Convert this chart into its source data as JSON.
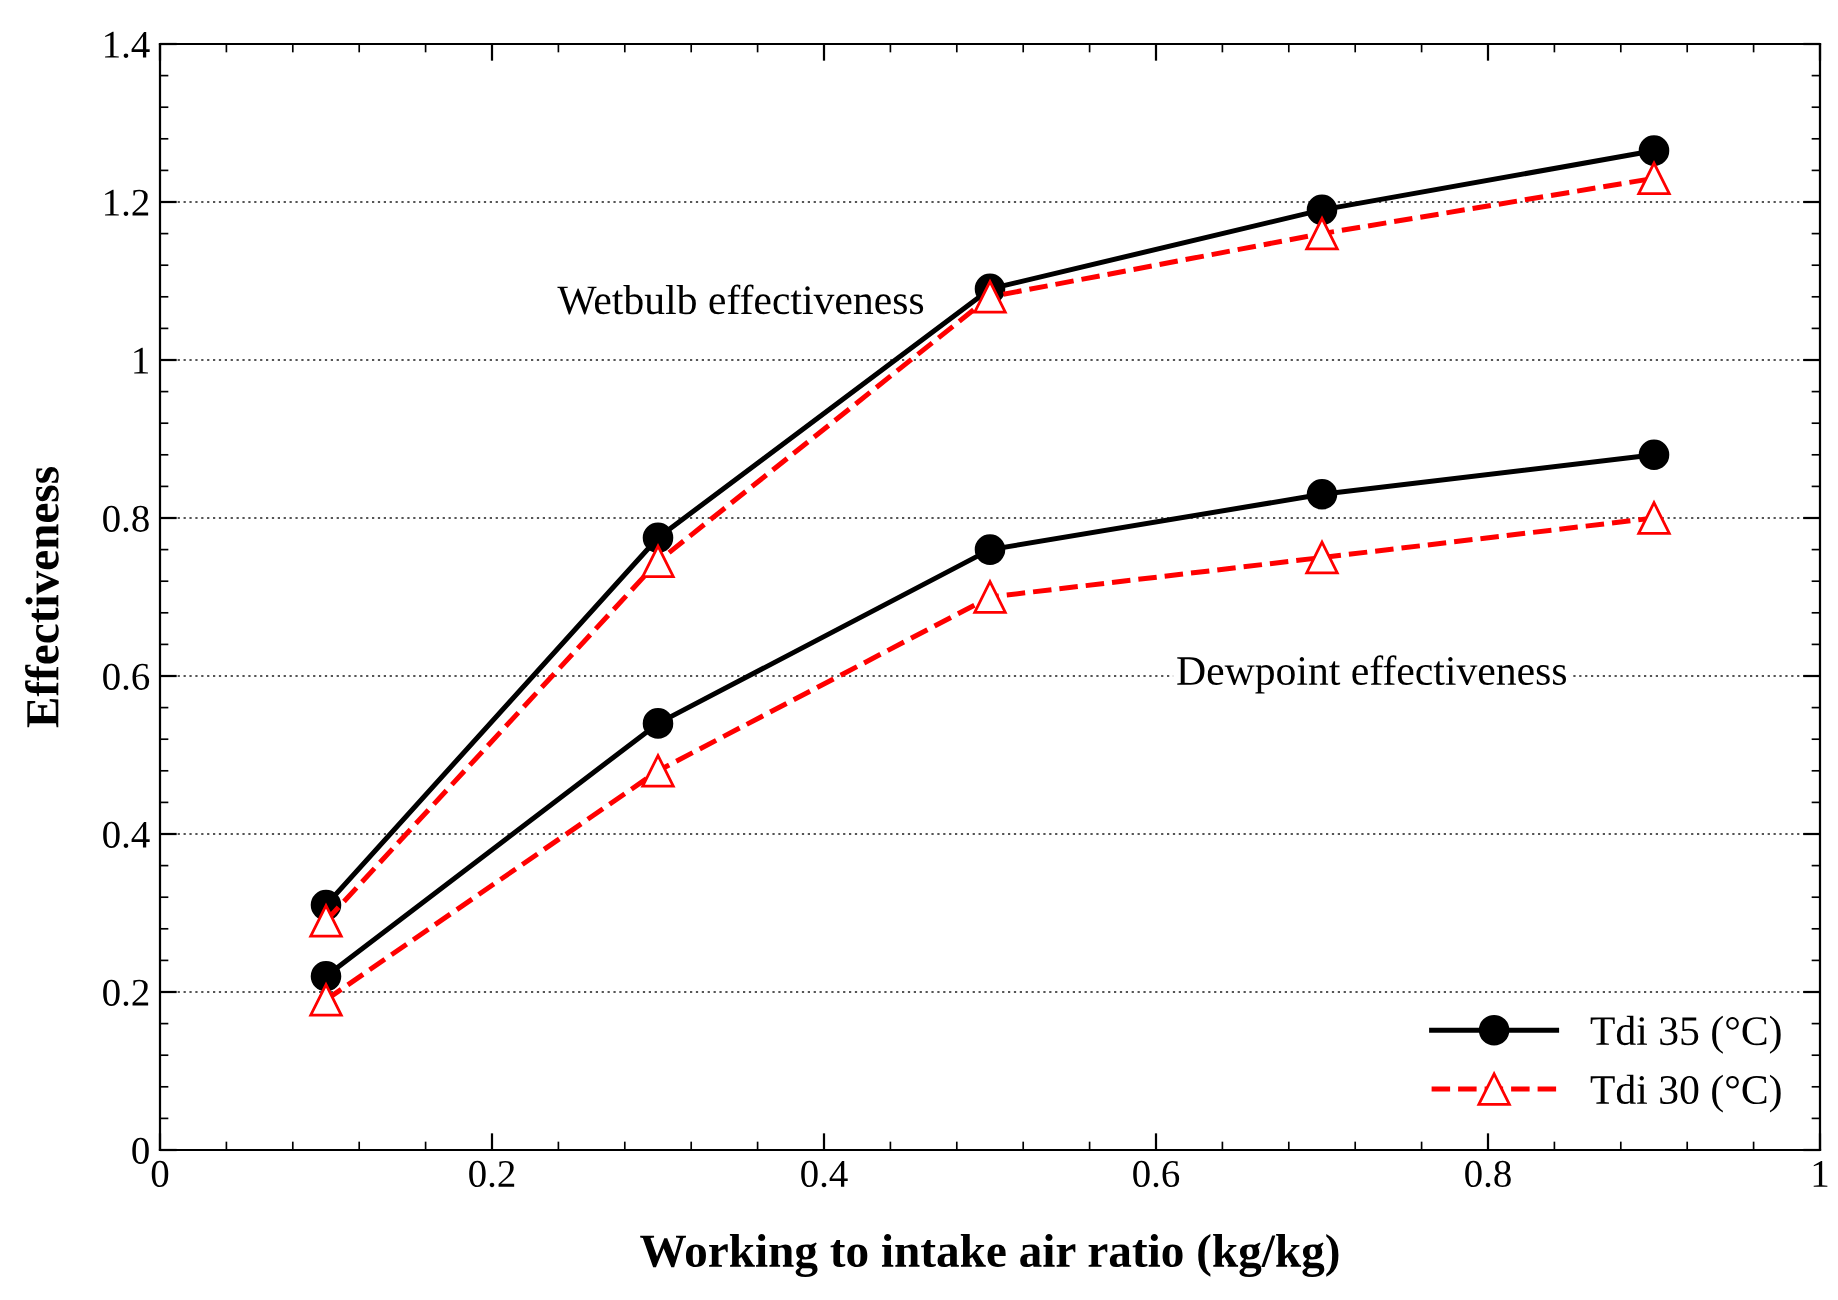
{
  "chart_data": {
    "type": "line",
    "xlabel": "Working to intake air ratio (kg/kg)",
    "ylabel": "Effectiveness",
    "x": [
      0.1,
      0.3,
      0.5,
      0.7,
      0.9
    ],
    "series": [
      {
        "name": "Tdi 35 (°C)",
        "color": "#000000",
        "marker": "circle",
        "line_style": "solid",
        "values": [
          0.31,
          0.775,
          1.09,
          1.19,
          1.265
        ]
      },
      {
        "name": "Tdi 30 (°C)",
        "color": "#ff0000",
        "marker": "triangle",
        "line_style": "dashed",
        "values": [
          0.29,
          0.745,
          1.08,
          1.16,
          1.23
        ]
      },
      {
        "color": "#000000",
        "marker": "circle",
        "line_style": "solid",
        "values": [
          0.22,
          0.54,
          0.76,
          0.83,
          0.88
        ]
      },
      {
        "color": "#ff0000",
        "marker": "triangle",
        "line_style": "dashed",
        "values": [
          0.19,
          0.48,
          0.7,
          0.75,
          0.8
        ]
      }
    ],
    "annotations": [
      "Wetbulb effectiveness",
      "Dewpoint effectiveness"
    ],
    "xlim": [
      0,
      1
    ],
    "xticks": [
      0,
      0.2,
      0.4,
      0.6,
      0.8,
      1
    ],
    "ylim": [
      0,
      1.4
    ],
    "yticks": [
      0,
      0.2,
      0.4,
      0.6,
      0.8,
      1,
      1.2,
      1.4
    ],
    "grid": "y",
    "legend": "bottom right"
  }
}
